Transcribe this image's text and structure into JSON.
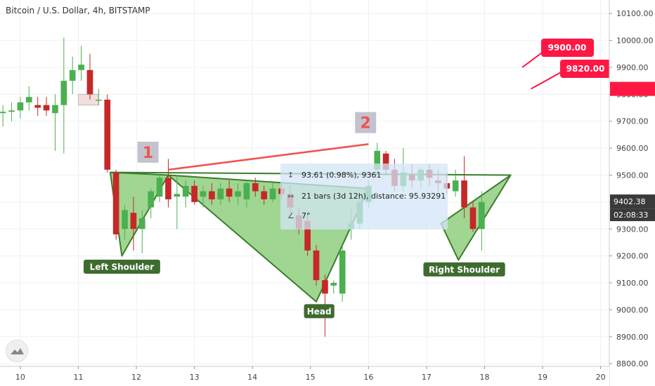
{
  "title": "Bitcoin / U.S. Dollar, 4h, BITSTAMP",
  "colors": {
    "up": "#4caf50",
    "down": "#c62828",
    "pattern_fill": "#8fcf7f",
    "pattern_stroke": "#3a7d2c",
    "label_bg": "#3e6b2f",
    "trend": "#ef5350",
    "marker_box": "#b8b8c8",
    "marker_text": "#ef5350",
    "price_red": "#ff1744",
    "price_dark": "#3a3a3a"
  },
  "chart_data": {
    "type": "candlestick",
    "ylim": [
      8790,
      10150
    ],
    "xlim": [
      9.65,
      20.15
    ],
    "y_ticks": [
      "10100.00",
      "10000.00",
      "9900.00",
      "9800.00",
      "9700.00",
      "9600.00",
      "9500.00",
      "9400.00",
      "9300.00",
      "9200.00",
      "9100.00",
      "9000.00",
      "8900.00",
      "8800.00"
    ],
    "x_ticks": [
      "10",
      "11",
      "12",
      "13",
      "14",
      "15",
      "16",
      "17",
      "18",
      "19",
      "20"
    ],
    "candles": [
      {
        "x": 9.7,
        "o": 9730,
        "h": 9760,
        "l": 9680,
        "c": 9735
      },
      {
        "x": 9.85,
        "o": 9735,
        "h": 9770,
        "l": 9700,
        "c": 9740
      },
      {
        "x": 10.0,
        "o": 9740,
        "h": 9790,
        "l": 9710,
        "c": 9770
      },
      {
        "x": 10.15,
        "o": 9770,
        "h": 9830,
        "l": 9740,
        "c": 9790
      },
      {
        "x": 10.3,
        "o": 9760,
        "h": 9790,
        "l": 9720,
        "c": 9750
      },
      {
        "x": 10.45,
        "o": 9760,
        "h": 9790,
        "l": 9720,
        "c": 9740
      },
      {
        "x": 10.6,
        "o": 9730,
        "h": 9800,
        "l": 9590,
        "c": 9760
      },
      {
        "x": 10.75,
        "o": 9760,
        "h": 10010,
        "l": 9580,
        "c": 9850
      },
      {
        "x": 10.9,
        "o": 9850,
        "h": 9940,
        "l": 9800,
        "c": 9890
      },
      {
        "x": 11.05,
        "o": 9890,
        "h": 9980,
        "l": 9850,
        "c": 9910
      },
      {
        "x": 11.2,
        "o": 9890,
        "h": 9950,
        "l": 9780,
        "c": 9800
      },
      {
        "x": 11.35,
        "o": 9780,
        "h": 9820,
        "l": 9760,
        "c": 9780
      },
      {
        "x": 11.5,
        "o": 9780,
        "h": 9800,
        "l": 9510,
        "c": 9520
      },
      {
        "x": 11.65,
        "o": 9510,
        "h": 9520,
        "l": 9260,
        "c": 9280
      },
      {
        "x": 11.8,
        "o": 9300,
        "h": 9390,
        "l": 9260,
        "c": 9370
      },
      {
        "x": 11.95,
        "o": 9360,
        "h": 9420,
        "l": 9220,
        "c": 9300
      },
      {
        "x": 12.1,
        "o": 9300,
        "h": 9370,
        "l": 9210,
        "c": 9340
      },
      {
        "x": 12.25,
        "o": 9380,
        "h": 9450,
        "l": 9340,
        "c": 9440
      },
      {
        "x": 12.4,
        "o": 9420,
        "h": 9500,
        "l": 9400,
        "c": 9490
      },
      {
        "x": 12.55,
        "o": 9490,
        "h": 9560,
        "l": 9380,
        "c": 9410
      },
      {
        "x": 12.7,
        "o": 9420,
        "h": 9500,
        "l": 9300,
        "c": 9430
      },
      {
        "x": 12.85,
        "o": 9420,
        "h": 9480,
        "l": 9380,
        "c": 9460
      },
      {
        "x": 13.0,
        "o": 9460,
        "h": 9480,
        "l": 9390,
        "c": 9400
      },
      {
        "x": 13.15,
        "o": 9420,
        "h": 9460,
        "l": 9380,
        "c": 9440
      },
      {
        "x": 13.3,
        "o": 9440,
        "h": 9470,
        "l": 9390,
        "c": 9410
      },
      {
        "x": 13.45,
        "o": 9410,
        "h": 9470,
        "l": 9390,
        "c": 9450
      },
      {
        "x": 13.6,
        "o": 9450,
        "h": 9480,
        "l": 9400,
        "c": 9420
      },
      {
        "x": 13.75,
        "o": 9420,
        "h": 9470,
        "l": 9390,
        "c": 9440
      },
      {
        "x": 13.9,
        "o": 9410,
        "h": 9480,
        "l": 9380,
        "c": 9470
      },
      {
        "x": 14.05,
        "o": 9470,
        "h": 9490,
        "l": 9420,
        "c": 9440
      },
      {
        "x": 14.2,
        "o": 9440,
        "h": 9460,
        "l": 9390,
        "c": 9410
      },
      {
        "x": 14.35,
        "o": 9410,
        "h": 9470,
        "l": 9400,
        "c": 9450
      },
      {
        "x": 14.5,
        "o": 9450,
        "h": 9470,
        "l": 9410,
        "c": 9430
      },
      {
        "x": 14.65,
        "o": 9430,
        "h": 9460,
        "l": 9360,
        "c": 9380
      },
      {
        "x": 14.8,
        "o": 9350,
        "h": 9380,
        "l": 9280,
        "c": 9300
      },
      {
        "x": 14.95,
        "o": 9330,
        "h": 9360,
        "l": 9200,
        "c": 9220
      },
      {
        "x": 15.1,
        "o": 9220,
        "h": 9240,
        "l": 9090,
        "c": 9110
      },
      {
        "x": 15.25,
        "o": 9110,
        "h": 9130,
        "l": 8900,
        "c": 9060
      },
      {
        "x": 15.4,
        "o": 9090,
        "h": 9110,
        "l": 9060,
        "c": 9100
      },
      {
        "x": 15.55,
        "o": 9060,
        "h": 9240,
        "l": 9030,
        "c": 9220
      },
      {
        "x": 15.7,
        "o": 9300,
        "h": 9380,
        "l": 9260,
        "c": 9320
      },
      {
        "x": 15.85,
        "o": 9320,
        "h": 9420,
        "l": 9300,
        "c": 9400
      },
      {
        "x": 16.0,
        "o": 9400,
        "h": 9480,
        "l": 9380,
        "c": 9460
      },
      {
        "x": 16.15,
        "o": 9520,
        "h": 9620,
        "l": 9500,
        "c": 9590
      },
      {
        "x": 16.3,
        "o": 9580,
        "h": 9590,
        "l": 9500,
        "c": 9520
      },
      {
        "x": 16.45,
        "o": 9520,
        "h": 9560,
        "l": 9440,
        "c": 9460
      },
      {
        "x": 16.6,
        "o": 9460,
        "h": 9600,
        "l": 9440,
        "c": 9510
      },
      {
        "x": 16.75,
        "o": 9500,
        "h": 9540,
        "l": 9450,
        "c": 9480
      },
      {
        "x": 16.9,
        "o": 9480,
        "h": 9530,
        "l": 9450,
        "c": 9520
      },
      {
        "x": 17.05,
        "o": 9520,
        "h": 9540,
        "l": 9460,
        "c": 9490
      },
      {
        "x": 17.2,
        "o": 9480,
        "h": 9520,
        "l": 9440,
        "c": 9470
      },
      {
        "x": 17.35,
        "o": 9470,
        "h": 9510,
        "l": 9430,
        "c": 9450
      },
      {
        "x": 17.5,
        "o": 9440,
        "h": 9520,
        "l": 9420,
        "c": 9480
      },
      {
        "x": 17.65,
        "o": 9480,
        "h": 9570,
        "l": 9340,
        "c": 9380
      },
      {
        "x": 17.8,
        "o": 9380,
        "h": 9400,
        "l": 9290,
        "c": 9300
      },
      {
        "x": 17.95,
        "o": 9300,
        "h": 9440,
        "l": 9220,
        "c": 9400
      }
    ],
    "pattern": {
      "shoulder_left": [
        [
          11.55,
          9510
        ],
        [
          11.75,
          9200
        ],
        [
          12.55,
          9500
        ]
      ],
      "head": [
        [
          12.55,
          9500
        ],
        [
          15.1,
          9030
        ],
        [
          16.0,
          9450
        ]
      ],
      "shoulder_right": [
        [
          17.25,
          9320
        ],
        [
          17.55,
          9185
        ],
        [
          18.45,
          9500
        ]
      ],
      "neckline": [
        [
          11.55,
          9510
        ],
        [
          18.45,
          9500
        ]
      ]
    },
    "labels": [
      {
        "text": "Left Shoulder",
        "x": 11.75,
        "y": 9160
      },
      {
        "text": "Head",
        "x": 15.15,
        "y": 8995
      },
      {
        "text": "Right Shoulder",
        "x": 17.65,
        "y": 9150
      }
    ],
    "trendline": [
      [
        12.55,
        9520
      ],
      [
        16.0,
        9615
      ]
    ],
    "markers": [
      {
        "text": "1",
        "x": 12.2,
        "y": 9585
      },
      {
        "text": "2",
        "x": 15.95,
        "y": 9695
      }
    ],
    "boxes": [
      {
        "x0": 11.0,
        "x1": 11.35,
        "y0": 9760,
        "y1": 9800
      }
    ],
    "price_flags": [
      {
        "text": "9900.00",
        "x": 18.65,
        "y": 9900
      },
      {
        "text": "9820.00",
        "x": 18.8,
        "y": 9820
      }
    ],
    "current_price": "9402.38",
    "countdown": "02:08:33",
    "measure": {
      "price_change": "93.61 (0.98%), 9361",
      "bars": "21 bars (3d 12h), distance: 95.93291",
      "angle": "7°"
    }
  }
}
